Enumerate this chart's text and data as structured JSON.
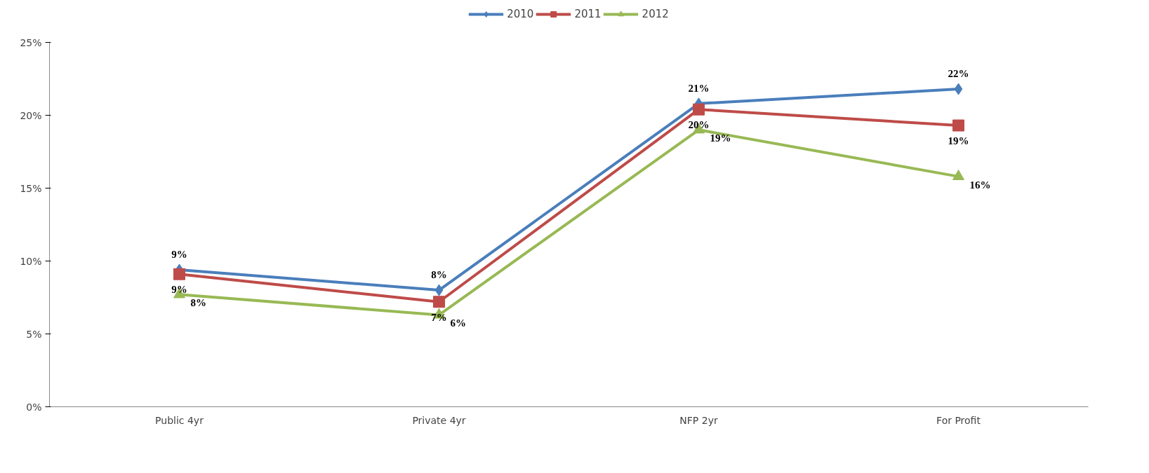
{
  "chart_data": {
    "type": "line",
    "categories": [
      "Public 4yr",
      "Private 4yr",
      "NFP 2yr",
      "For Profit"
    ],
    "series": [
      {
        "name": "2010",
        "color": "#4a7ebb",
        "marker": "diamond",
        "values": [
          9.4,
          8.0,
          20.8,
          21.8
        ],
        "value_labels": [
          "9%",
          "8%",
          "21%",
          "22%"
        ]
      },
      {
        "name": "2011",
        "color": "#be4b48",
        "marker": "square",
        "values": [
          9.1,
          7.2,
          20.4,
          19.3
        ],
        "value_labels": [
          "9%",
          "7%",
          "20%",
          "19%"
        ]
      },
      {
        "name": "2012",
        "color": "#98b954",
        "marker": "triangle",
        "values": [
          7.7,
          6.3,
          19.0,
          15.8
        ],
        "value_labels": [
          "8%",
          "6%",
          "19%",
          "16%"
        ]
      }
    ],
    "ylim": [
      0,
      25
    ],
    "yticks": [
      {
        "value": 0,
        "label": "0%"
      },
      {
        "value": 5,
        "label": "5%"
      },
      {
        "value": 10,
        "label": "10%"
      },
      {
        "value": 15,
        "label": "15%"
      },
      {
        "value": 20,
        "label": "20%"
      },
      {
        "value": 25,
        "label": "25%"
      }
    ],
    "grid": false,
    "legend": "top",
    "line_style": "solid"
  }
}
